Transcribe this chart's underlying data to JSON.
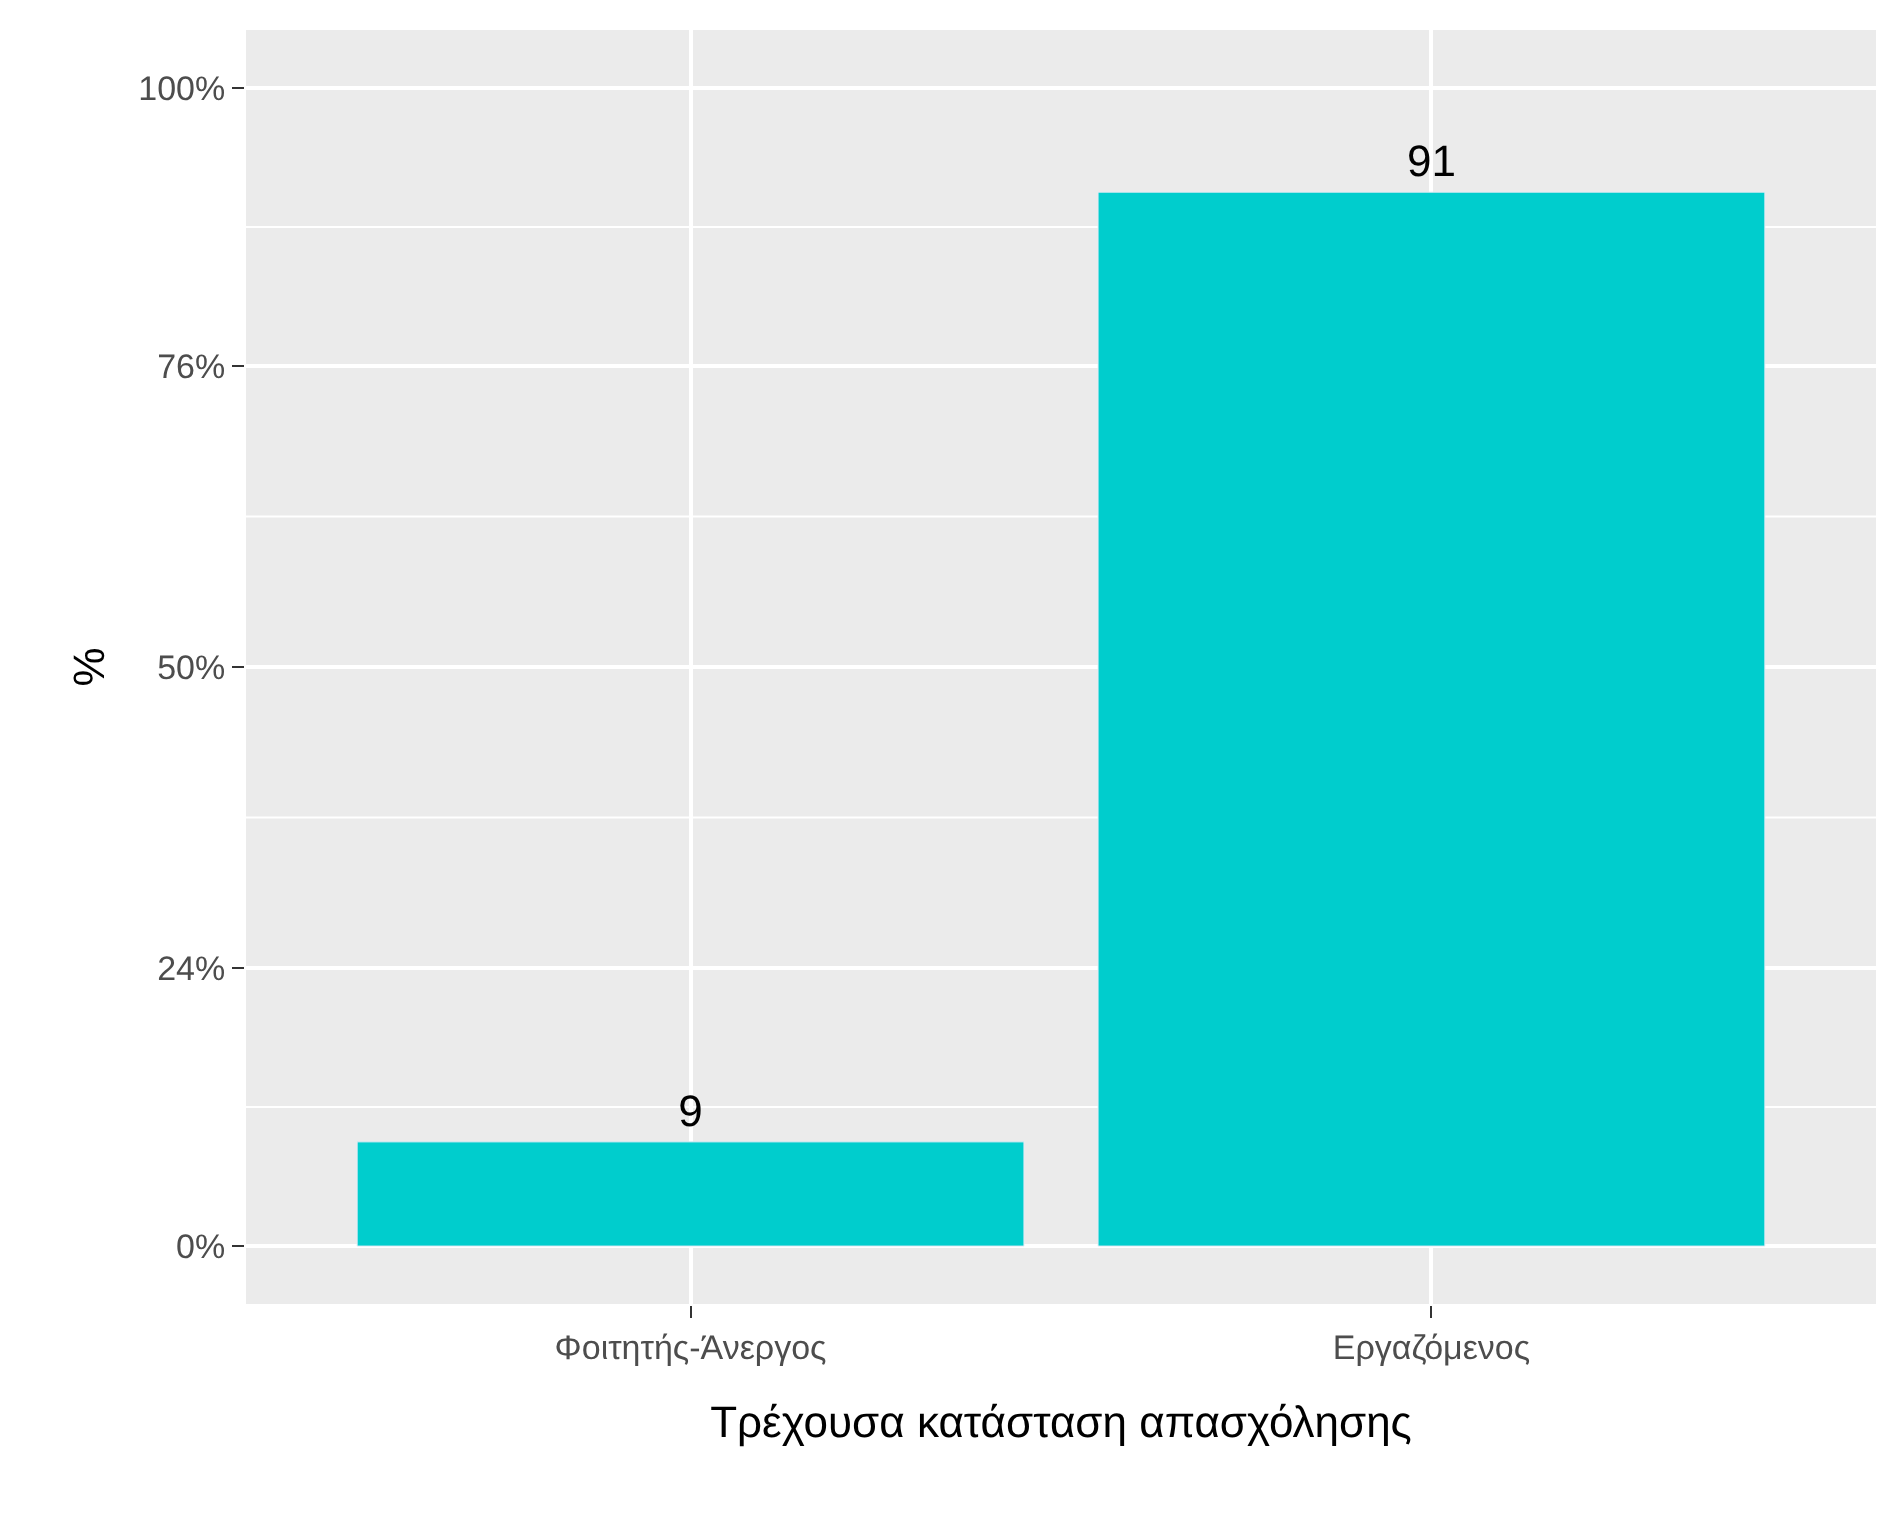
{
  "chart_data": {
    "type": "bar",
    "xlabel": "Τρέχουσα κατάσταση απασχόλησης",
    "ylabel": "%",
    "categories": [
      "Φοιτητής-Άνεργος",
      "Εργαζόμενος"
    ],
    "values": [
      9,
      91
    ],
    "color": "#00cdcd",
    "ylim": [
      -5,
      105
    ],
    "yticks": [
      {
        "value": 0,
        "label": "0%"
      },
      {
        "value": 24,
        "label": "24%"
      },
      {
        "value": 50,
        "label": "50%"
      },
      {
        "value": 76,
        "label": "76%"
      },
      {
        "value": 100,
        "label": "100%"
      }
    ],
    "grid": true,
    "data_labels": true
  }
}
